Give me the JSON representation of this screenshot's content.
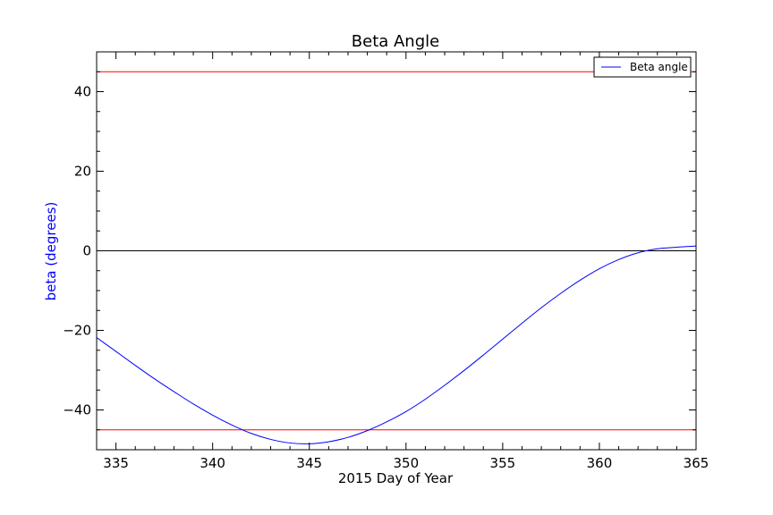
{
  "chart_data": {
    "type": "line",
    "title": "Beta Angle",
    "xlabel": "2015 Day of Year",
    "ylabel": "beta (degrees)",
    "xlim": [
      334,
      365
    ],
    "ylim": [
      -50,
      50
    ],
    "x_ticks": [
      335,
      340,
      345,
      350,
      355,
      360,
      365
    ],
    "y_ticks": [
      -40,
      -20,
      0,
      20,
      40
    ],
    "y_tick_labels": [
      "−40",
      "−20",
      "0",
      "20",
      "40"
    ],
    "grid": false,
    "legend_position": "top-right",
    "series": [
      {
        "name": "Beta angle",
        "color": "#0000ff",
        "x": [
          334,
          335,
          336,
          337,
          338,
          339,
          340,
          341,
          342,
          343,
          344,
          345,
          346,
          347,
          348,
          349,
          350,
          351,
          352,
          353,
          354,
          355,
          356,
          357,
          358,
          359,
          360,
          361,
          362,
          363,
          364,
          365
        ],
        "y": [
          -21.8,
          -25.3,
          -28.8,
          -32.2,
          -35.4,
          -38.5,
          -41.3,
          -43.8,
          -45.9,
          -47.4,
          -48.3,
          -48.5,
          -48.0,
          -46.9,
          -45.2,
          -43.0,
          -40.4,
          -37.3,
          -33.8,
          -30.1,
          -26.2,
          -22.2,
          -18.2,
          -14.3,
          -10.7,
          -7.4,
          -4.5,
          -2.2,
          -0.5,
          0.5,
          0.9,
          1.2
        ]
      }
    ],
    "reference_lines": [
      {
        "y": 45,
        "color": "#ff0000"
      },
      {
        "y": -45,
        "color": "#ff0000"
      },
      {
        "y": 0,
        "color": "#000000"
      }
    ],
    "ylabel_color": "#0000ff"
  }
}
